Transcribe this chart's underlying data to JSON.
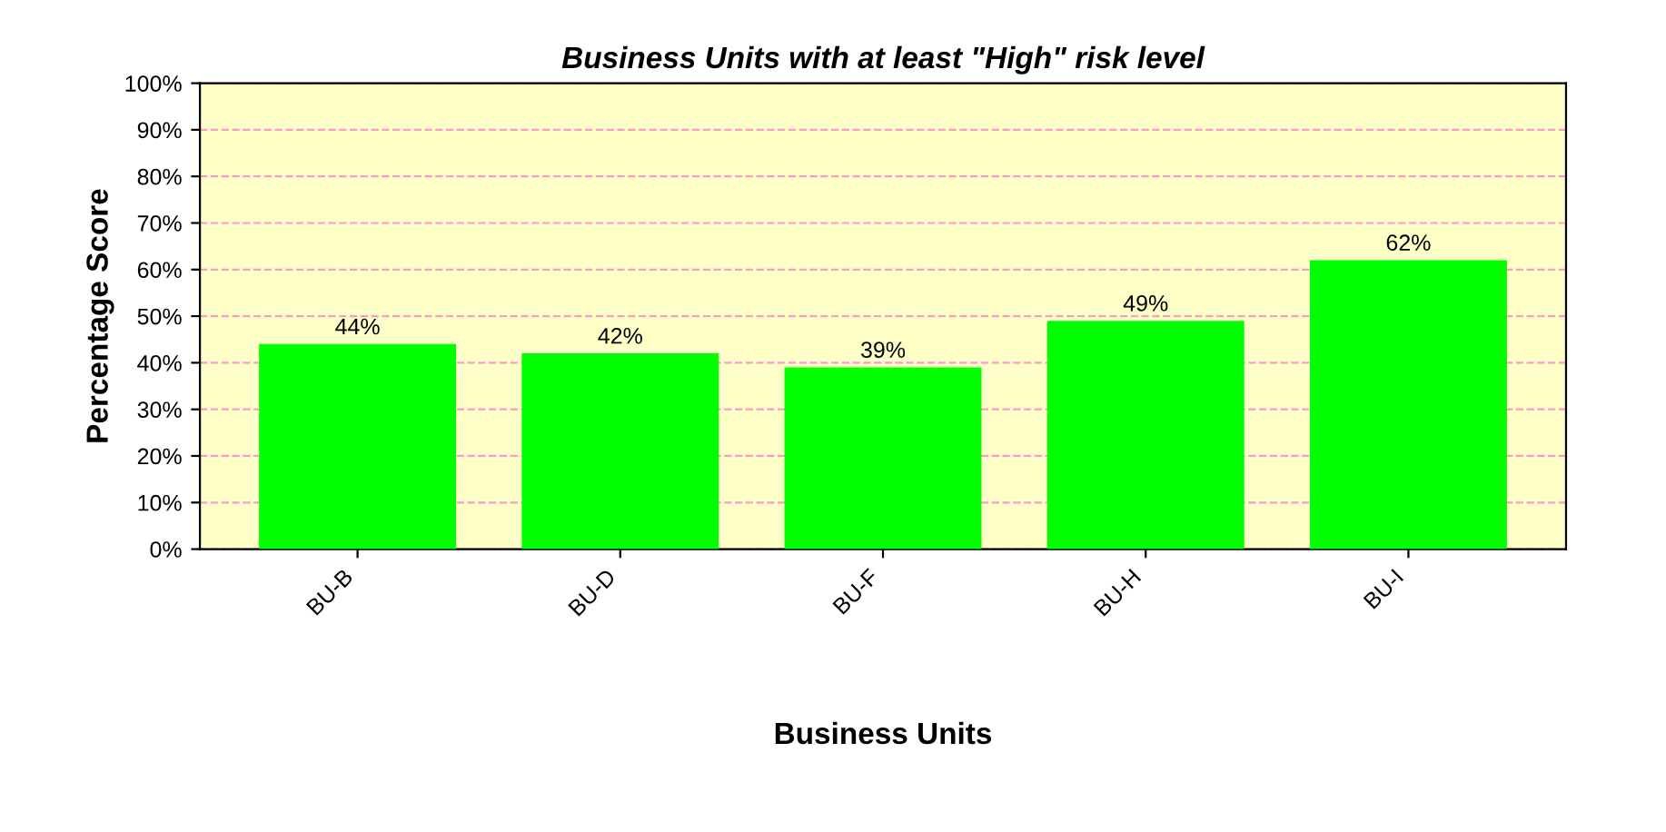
{
  "chart_data": {
    "type": "bar",
    "title": "Business Units with at least \"High\" risk level",
    "xlabel": "Business Units",
    "ylabel": "Percentage Score",
    "categories": [
      "BU-B",
      "BU-D",
      "BU-F",
      "BU-H",
      "BU-I"
    ],
    "values": [
      44,
      42,
      39,
      49,
      62
    ],
    "value_labels": [
      "44%",
      "42%",
      "39%",
      "49%",
      "62%"
    ],
    "color": "#00ff00",
    "ylim": [
      0,
      100
    ],
    "yticks": [
      {
        "value": 0,
        "label": "0%"
      },
      {
        "value": 10,
        "label": "10%"
      },
      {
        "value": 20,
        "label": "20%"
      },
      {
        "value": 30,
        "label": "30%"
      },
      {
        "value": 40,
        "label": "40%"
      },
      {
        "value": 50,
        "label": "50%"
      },
      {
        "value": 60,
        "label": "60%"
      },
      {
        "value": 70,
        "label": "70%"
      },
      {
        "value": 80,
        "label": "80%"
      },
      {
        "value": 90,
        "label": "90%"
      },
      {
        "value": 100,
        "label": "100%"
      }
    ],
    "grid": "y"
  }
}
